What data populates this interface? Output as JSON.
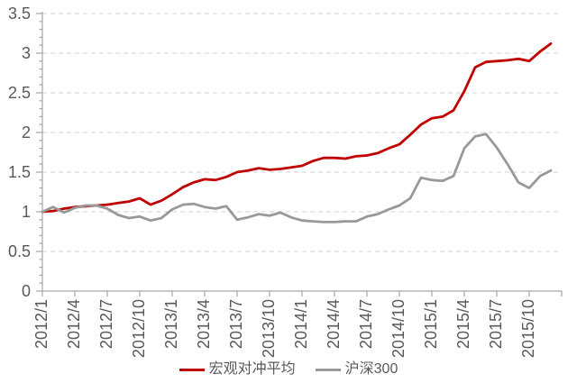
{
  "chart_data": {
    "type": "line",
    "title": "",
    "categories": [
      "2012/1",
      "2012/2",
      "2012/3",
      "2012/4",
      "2012/5",
      "2012/6",
      "2012/7",
      "2012/8",
      "2012/9",
      "2012/10",
      "2012/11",
      "2012/12",
      "2013/1",
      "2013/2",
      "2013/3",
      "2013/4",
      "2013/5",
      "2013/6",
      "2013/7",
      "2013/8",
      "2013/9",
      "2013/10",
      "2013/11",
      "2013/12",
      "2014/1",
      "2014/2",
      "2014/3",
      "2014/4",
      "2014/5",
      "2014/6",
      "2014/7",
      "2014/8",
      "2014/9",
      "2014/10",
      "2014/11",
      "2014/12",
      "2015/1",
      "2015/2",
      "2015/3",
      "2015/4",
      "2015/5",
      "2015/6",
      "2015/7",
      "2015/8",
      "2015/9",
      "2015/10",
      "2015/11",
      "2015/12"
    ],
    "x_tick_labels": [
      "2012/1",
      "2012/4",
      "2012/7",
      "2012/10",
      "2013/1",
      "2013/4",
      "2013/7",
      "2013/10",
      "2014/1",
      "2014/4",
      "2014/7",
      "2014/10",
      "2015/1",
      "2015/4",
      "2015/7",
      "2015/10"
    ],
    "y_ticks": [
      "0",
      "0.5",
      "1",
      "1.5",
      "2",
      "2.5",
      "3",
      "3.5"
    ],
    "ylim": [
      0,
      3.5
    ],
    "grid": "horizontal-dashed",
    "legend_position": "bottom-center",
    "series": [
      {
        "name": "宏观对冲平均",
        "color": "#C00000",
        "values": [
          1.0,
          1.01,
          1.04,
          1.06,
          1.07,
          1.08,
          1.09,
          1.11,
          1.13,
          1.17,
          1.09,
          1.14,
          1.22,
          1.31,
          1.37,
          1.41,
          1.4,
          1.44,
          1.5,
          1.52,
          1.55,
          1.53,
          1.54,
          1.56,
          1.58,
          1.64,
          1.68,
          1.68,
          1.67,
          1.7,
          1.71,
          1.74,
          1.8,
          1.85,
          1.97,
          2.1,
          2.18,
          2.2,
          2.28,
          2.52,
          2.82,
          2.89,
          2.9,
          2.91,
          2.93,
          2.9,
          3.02,
          3.12
        ]
      },
      {
        "name": "沪深300",
        "color": "#999999",
        "values": [
          1.0,
          1.06,
          0.99,
          1.05,
          1.08,
          1.08,
          1.04,
          0.96,
          0.92,
          0.94,
          0.89,
          0.92,
          1.03,
          1.09,
          1.1,
          1.06,
          1.04,
          1.07,
          0.9,
          0.93,
          0.97,
          0.95,
          0.99,
          0.93,
          0.89,
          0.88,
          0.87,
          0.87,
          0.88,
          0.88,
          0.94,
          0.97,
          1.03,
          1.08,
          1.17,
          1.43,
          1.4,
          1.39,
          1.45,
          1.8,
          1.95,
          1.98,
          1.81,
          1.6,
          1.37,
          1.3,
          1.45,
          1.52
        ]
      }
    ]
  },
  "style": {
    "background": "#FFFFFF",
    "axis_color": "#A6A6A6",
    "gridline_color": "#D9D9D9",
    "label_color": "#595959",
    "line_width": 2.8
  }
}
